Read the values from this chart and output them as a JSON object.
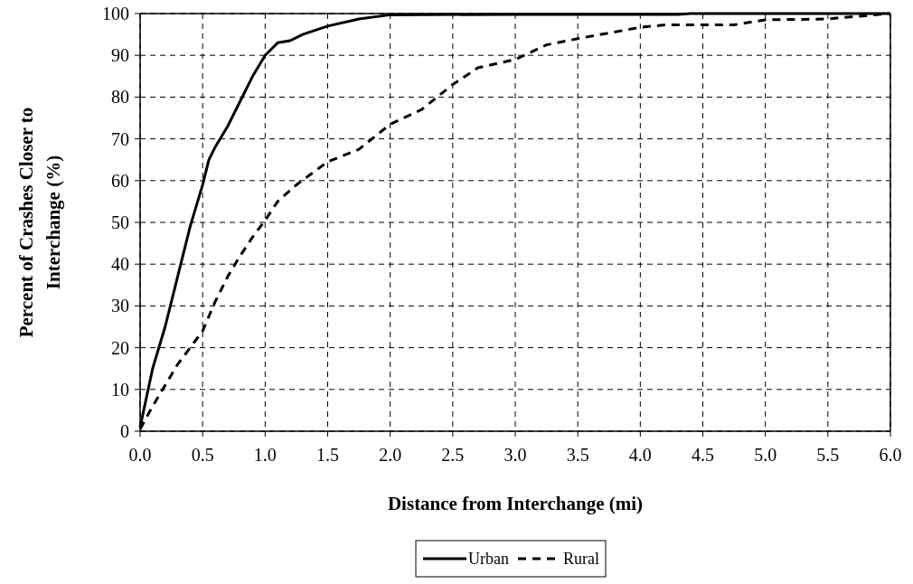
{
  "chart_data": {
    "type": "line",
    "xlabel": "Distance from Interchange (mi)",
    "ylabel": "Percent of Crashes Closer to Interchange (%)",
    "xlim": [
      0,
      6
    ],
    "xticks": [
      {
        "value": 0,
        "label": "0.0"
      },
      {
        "value": 0.5,
        "label": "0.5"
      },
      {
        "value": 1,
        "label": "1.0"
      },
      {
        "value": 1.5,
        "label": "1.5"
      },
      {
        "value": 2,
        "label": "2.0"
      },
      {
        "value": 2.5,
        "label": "2.5"
      },
      {
        "value": 3,
        "label": "3.0"
      },
      {
        "value": 3.5,
        "label": "3.5"
      },
      {
        "value": 4,
        "label": "4.0"
      },
      {
        "value": 4.5,
        "label": "4.5"
      },
      {
        "value": 5,
        "label": "5.0"
      },
      {
        "value": 5.5,
        "label": "5.5"
      },
      {
        "value": 6,
        "label": "6.0"
      }
    ],
    "ylim": [
      0,
      100
    ],
    "yticks": [
      0,
      10,
      20,
      30,
      40,
      50,
      60,
      70,
      80,
      90,
      100
    ],
    "grid": true,
    "legend": "bottom",
    "series": [
      {
        "name": "Urban",
        "color": "#000000",
        "line_style": "solid",
        "x": [
          0,
          0.1,
          0.2,
          0.3,
          0.4,
          0.5,
          0.55,
          0.6,
          0.7,
          0.8,
          0.9,
          1.0,
          1.1,
          1.2,
          1.3,
          1.5,
          1.75,
          2.0,
          3.0,
          4.3,
          4.4,
          6.0
        ],
        "values": [
          1,
          15,
          25,
          37,
          49,
          59,
          65,
          68,
          73,
          79,
          85,
          90,
          93,
          93.5,
          95,
          97,
          98.7,
          99.7,
          99.8,
          99.8,
          100,
          100
        ]
      },
      {
        "name": "Rural",
        "color": "#000000",
        "line_style": "dashed",
        "x": [
          0,
          0.1,
          0.2,
          0.3,
          0.4,
          0.5,
          0.6,
          0.7,
          0.8,
          0.9,
          1.0,
          1.1,
          1.25,
          1.5,
          1.75,
          2.0,
          2.25,
          2.5,
          2.7,
          3.0,
          3.25,
          3.5,
          4.0,
          4.2,
          4.75,
          5.0,
          5.5,
          5.6,
          6.0
        ],
        "values": [
          0.5,
          6,
          11,
          16,
          20,
          24,
          31,
          37,
          42,
          46.5,
          50.5,
          55,
          59,
          64.5,
          67.5,
          73.5,
          77,
          83,
          87,
          89,
          92.5,
          94,
          96.7,
          97.3,
          97.3,
          98.5,
          98.7,
          99,
          100
        ]
      }
    ]
  }
}
